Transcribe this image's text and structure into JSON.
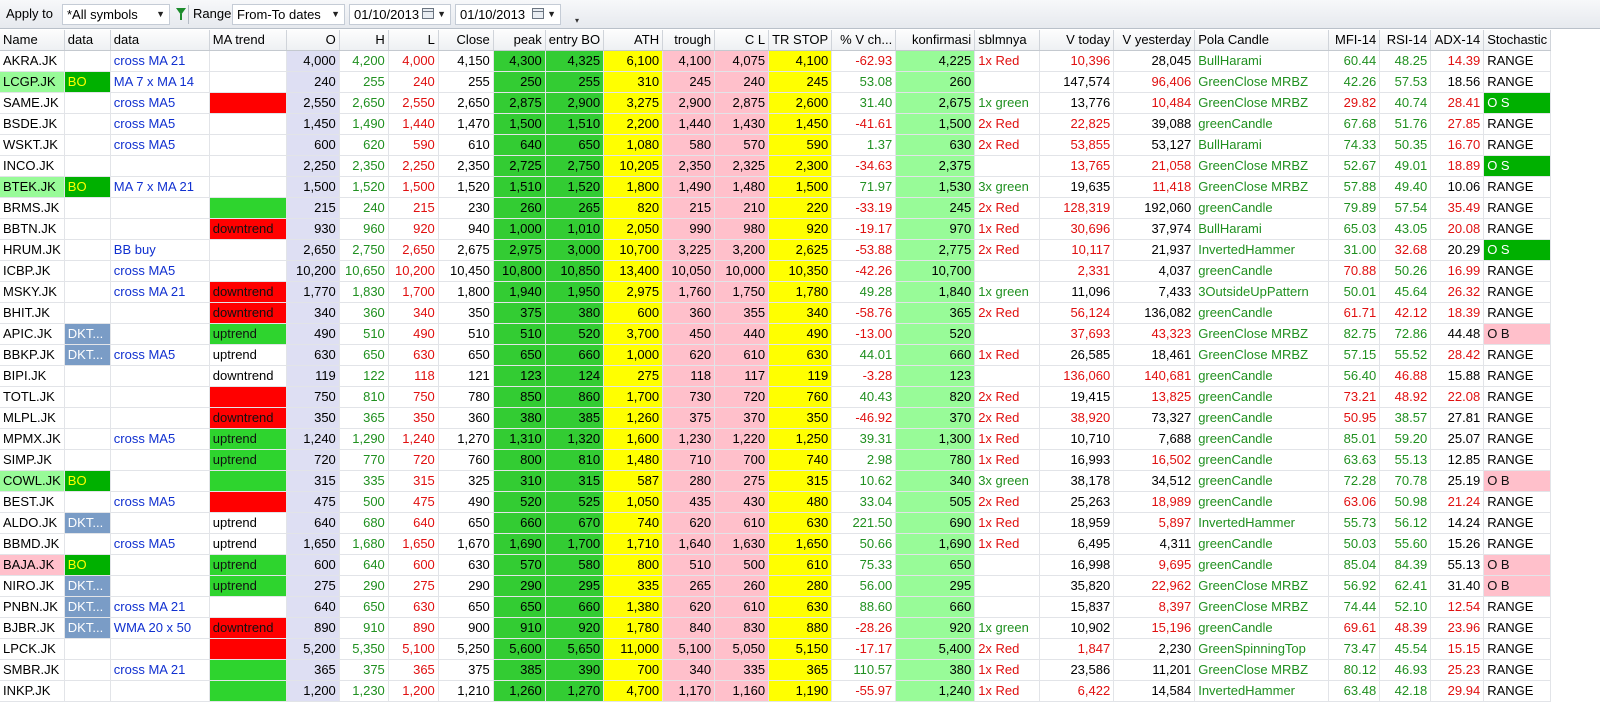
{
  "toolbar": {
    "apply_label": "Apply to",
    "symbols_value": "*All symbols",
    "range_label": "Range",
    "range_value": "From-To dates",
    "date_from": "01/10/2013",
    "date_to": "01/10/2013"
  },
  "columns": [
    "Name",
    "data",
    "data",
    "MA trend",
    "O",
    "H",
    "L",
    "Close",
    "peak",
    "entry BO",
    "ATH",
    "trough",
    "C L",
    "TR STOP",
    "% V ch...",
    "konfirmasi",
    "sblmnya",
    "V today",
    "V yesterday",
    "Pola Candle",
    "MFI-14",
    "RSI-14",
    "ADX-14",
    "Stochastic"
  ],
  "colors": {
    "red": "#ff0000",
    "green": "#2ed42e",
    "yellow": "#ffff00",
    "pink": "#ffc0cb",
    "light_green": "#98fb98",
    "bo_green": "#00b000",
    "dkt_blue": "#7a9cc6"
  },
  "rows": [
    {
      "name": "AKRA.JK",
      "d1": "",
      "d2": "cross MA 21",
      "ma": "",
      "o": "4,000",
      "h": "4,200",
      "l": "4,000",
      "close": "4,150",
      "peak": "4,300",
      "entry": "4,325",
      "ath": "6,100",
      "trough": "4,100",
      "cl": "4,075",
      "trstop": "4,100",
      "vch": "-62.93",
      "konf": "4,225",
      "sblm": "1x Red",
      "vtoday": "10,396",
      "vyest": "28,045",
      "pola": "BullHarami",
      "mfi": "60.44",
      "rsi": "48.25",
      "adx": "14.39",
      "stoch": "RANGE"
    },
    {
      "name": "LCGP.JK",
      "d1": "BO",
      "d2": "MA 7 x MA 14",
      "ma": "",
      "o": "240",
      "h": "255",
      "l": "240",
      "close": "255",
      "peak": "250",
      "entry": "255",
      "ath": "310",
      "trough": "245",
      "cl": "240",
      "trstop": "245",
      "vch": "53.08",
      "konf": "260",
      "sblm": "",
      "vtoday": "147,574",
      "vyest": "96,406",
      "pola": "GreenClose MRBZ",
      "mfi": "42.26",
      "rsi": "57.53",
      "adx": "18.56",
      "stoch": "RANGE"
    },
    {
      "name": "SAME.JK",
      "d1": "",
      "d2": "cross MA5",
      "ma": "",
      "o": "2,550",
      "h": "2,650",
      "l": "2,550",
      "close": "2,650",
      "peak": "2,875",
      "entry": "2,900",
      "ath": "3,275",
      "trough": "2,900",
      "cl": "2,875",
      "trstop": "2,600",
      "vch": "31.40",
      "konf": "2,675",
      "sblm": "1x green",
      "vtoday": "13,776",
      "vyest": "10,484",
      "pola": "GreenClose MRBZ",
      "mfi": "29.82",
      "rsi": "40.74",
      "adx": "28.41",
      "stoch": "O S"
    },
    {
      "name": "BSDE.JK",
      "d1": "",
      "d2": "cross MA5",
      "ma": "",
      "o": "1,450",
      "h": "1,490",
      "l": "1,440",
      "close": "1,470",
      "peak": "1,500",
      "entry": "1,510",
      "ath": "2,200",
      "trough": "1,440",
      "cl": "1,430",
      "trstop": "1,450",
      "vch": "-41.61",
      "konf": "1,500",
      "sblm": "2x Red",
      "vtoday": "22,825",
      "vyest": "39,088",
      "pola": "greenCandle",
      "mfi": "67.68",
      "rsi": "51.76",
      "adx": "27.85",
      "stoch": "RANGE"
    },
    {
      "name": "WSKT.JK",
      "d1": "",
      "d2": "cross MA5",
      "ma": "",
      "o": "600",
      "h": "620",
      "l": "590",
      "close": "610",
      "peak": "640",
      "entry": "650",
      "ath": "1,080",
      "trough": "580",
      "cl": "570",
      "trstop": "590",
      "vch": "1.37",
      "konf": "630",
      "sblm": "2x Red",
      "vtoday": "53,855",
      "vyest": "53,127",
      "pola": "BullHarami",
      "mfi": "74.33",
      "rsi": "50.35",
      "adx": "16.70",
      "stoch": "RANGE"
    },
    {
      "name": "INCO.JK",
      "d1": "",
      "d2": "",
      "ma": "",
      "o": "2,250",
      "h": "2,350",
      "l": "2,250",
      "close": "2,350",
      "peak": "2,725",
      "entry": "2,750",
      "ath": "10,205",
      "trough": "2,350",
      "cl": "2,325",
      "trstop": "2,300",
      "vch": "-34.63",
      "konf": "2,375",
      "sblm": "",
      "vtoday": "13,765",
      "vyest": "21,058",
      "pola": "GreenClose MRBZ",
      "mfi": "52.67",
      "rsi": "49.01",
      "adx": "18.89",
      "stoch": "O S"
    },
    {
      "name": "BTEK.JK",
      "d1": "BO",
      "d2": "MA 7 x MA 21",
      "ma": "",
      "o": "1,500",
      "h": "1,520",
      "l": "1,500",
      "close": "1,520",
      "peak": "1,510",
      "entry": "1,520",
      "ath": "1,800",
      "trough": "1,490",
      "cl": "1,480",
      "trstop": "1,500",
      "vch": "71.97",
      "konf": "1,530",
      "sblm": "3x green",
      "vtoday": "19,635",
      "vyest": "11,418",
      "pola": "GreenClose MRBZ",
      "mfi": "57.88",
      "rsi": "49.40",
      "adx": "10.06",
      "stoch": "RANGE"
    },
    {
      "name": "BRMS.JK",
      "d1": "",
      "d2": "",
      "ma": "",
      "o": "215",
      "h": "240",
      "l": "215",
      "close": "230",
      "peak": "260",
      "entry": "265",
      "ath": "820",
      "trough": "215",
      "cl": "210",
      "trstop": "220",
      "vch": "-33.19",
      "konf": "245",
      "sblm": "2x Red",
      "vtoday": "128,319",
      "vyest": "192,060",
      "pola": "greenCandle",
      "mfi": "79.89",
      "rsi": "57.54",
      "adx": "35.49",
      "stoch": "RANGE"
    },
    {
      "name": "BBTN.JK",
      "d1": "",
      "d2": "",
      "ma": "downtrend",
      "o": "930",
      "h": "960",
      "l": "920",
      "close": "940",
      "peak": "1,000",
      "entry": "1,010",
      "ath": "2,050",
      "trough": "990",
      "cl": "980",
      "trstop": "920",
      "vch": "-19.17",
      "konf": "970",
      "sblm": "1x Red",
      "vtoday": "30,696",
      "vyest": "37,974",
      "pola": "BullHarami",
      "mfi": "65.03",
      "rsi": "43.05",
      "adx": "20.08",
      "stoch": "RANGE"
    },
    {
      "name": "HRUM.JK",
      "d1": "",
      "d2": "BB buy",
      "ma": "",
      "o": "2,650",
      "h": "2,750",
      "l": "2,650",
      "close": "2,675",
      "peak": "2,975",
      "entry": "3,000",
      "ath": "10,700",
      "trough": "3,225",
      "cl": "3,200",
      "trstop": "2,625",
      "vch": "-53.88",
      "konf": "2,775",
      "sblm": "2x Red",
      "vtoday": "10,117",
      "vyest": "21,937",
      "pola": "InvertedHammer",
      "mfi": "31.00",
      "rsi": "32.68",
      "adx": "20.29",
      "stoch": "O S"
    },
    {
      "name": "ICBP.JK",
      "d1": "",
      "d2": "cross MA5",
      "ma": "",
      "o": "10,200",
      "h": "10,650",
      "l": "10,200",
      "close": "10,450",
      "peak": "10,800",
      "entry": "10,850",
      "ath": "13,400",
      "trough": "10,050",
      "cl": "10,000",
      "trstop": "10,350",
      "vch": "-42.26",
      "konf": "10,700",
      "sblm": "",
      "vtoday": "2,331",
      "vyest": "4,037",
      "pola": "greenCandle",
      "mfi": "70.88",
      "rsi": "50.26",
      "adx": "16.99",
      "stoch": "RANGE"
    },
    {
      "name": "MSKY.JK",
      "d1": "",
      "d2": "cross MA 21",
      "ma": "downtrend",
      "o": "1,770",
      "h": "1,830",
      "l": "1,700",
      "close": "1,800",
      "peak": "1,940",
      "entry": "1,950",
      "ath": "2,975",
      "trough": "1,760",
      "cl": "1,750",
      "trstop": "1,780",
      "vch": "49.28",
      "konf": "1,840",
      "sblm": "1x green",
      "vtoday": "11,096",
      "vyest": "7,433",
      "pola": "3OutsideUpPattern",
      "mfi": "50.01",
      "rsi": "45.64",
      "adx": "26.32",
      "stoch": "RANGE"
    },
    {
      "name": "BHIT.JK",
      "d1": "",
      "d2": "",
      "ma": "downtrend",
      "o": "340",
      "h": "360",
      "l": "340",
      "close": "350",
      "peak": "375",
      "entry": "380",
      "ath": "600",
      "trough": "360",
      "cl": "355",
      "trstop": "340",
      "vch": "-58.76",
      "konf": "365",
      "sblm": "2x Red",
      "vtoday": "56,124",
      "vyest": "136,082",
      "pola": "greenCandle",
      "mfi": "61.71",
      "rsi": "42.12",
      "adx": "18.39",
      "stoch": "RANGE"
    },
    {
      "name": "APIC.JK",
      "d1": "DKT...",
      "d2": "",
      "ma": "uptrend",
      "o": "490",
      "h": "510",
      "l": "490",
      "close": "510",
      "peak": "510",
      "entry": "520",
      "ath": "3,700",
      "trough": "450",
      "cl": "440",
      "trstop": "490",
      "vch": "-13.00",
      "konf": "520",
      "sblm": "",
      "vtoday": "37,693",
      "vyest": "43,323",
      "pola": "GreenClose MRBZ",
      "mfi": "82.75",
      "rsi": "72.86",
      "adx": "44.48",
      "stoch": "O B"
    },
    {
      "name": "BBKP.JK",
      "d1": "DKT...",
      "d2": "cross MA5",
      "ma": "uptrend",
      "o": "630",
      "h": "650",
      "l": "630",
      "close": "650",
      "peak": "650",
      "entry": "660",
      "ath": "1,000",
      "trough": "620",
      "cl": "610",
      "trstop": "630",
      "vch": "44.01",
      "konf": "660",
      "sblm": "1x Red",
      "vtoday": "26,585",
      "vyest": "18,461",
      "pola": "GreenClose MRBZ",
      "mfi": "57.15",
      "rsi": "55.52",
      "adx": "28.42",
      "stoch": "RANGE"
    },
    {
      "name": "BIPI.JK",
      "d1": "",
      "d2": "",
      "ma": "downtrend",
      "o": "119",
      "h": "122",
      "l": "118",
      "close": "121",
      "peak": "123",
      "entry": "124",
      "ath": "275",
      "trough": "118",
      "cl": "117",
      "trstop": "119",
      "vch": "-3.28",
      "konf": "123",
      "sblm": "",
      "vtoday": "136,060",
      "vyest": "140,681",
      "pola": "greenCandle",
      "mfi": "56.40",
      "rsi": "46.88",
      "adx": "15.88",
      "stoch": "RANGE"
    },
    {
      "name": "TOTL.JK",
      "d1": "",
      "d2": "",
      "ma": "",
      "o": "750",
      "h": "810",
      "l": "750",
      "close": "780",
      "peak": "850",
      "entry": "860",
      "ath": "1,700",
      "trough": "730",
      "cl": "720",
      "trstop": "760",
      "vch": "40.43",
      "konf": "820",
      "sblm": "2x Red",
      "vtoday": "19,415",
      "vyest": "13,825",
      "pola": "greenCandle",
      "mfi": "73.21",
      "rsi": "48.92",
      "adx": "22.08",
      "stoch": "RANGE"
    },
    {
      "name": "MLPL.JK",
      "d1": "",
      "d2": "",
      "ma": "downtrend",
      "o": "350",
      "h": "365",
      "l": "350",
      "close": "360",
      "peak": "380",
      "entry": "385",
      "ath": "1,260",
      "trough": "375",
      "cl": "370",
      "trstop": "350",
      "vch": "-46.92",
      "konf": "370",
      "sblm": "2x Red",
      "vtoday": "38,920",
      "vyest": "73,327",
      "pola": "greenCandle",
      "mfi": "50.95",
      "rsi": "38.57",
      "adx": "27.81",
      "stoch": "RANGE"
    },
    {
      "name": "MPMX.JK",
      "d1": "",
      "d2": "cross MA5",
      "ma": "uptrend",
      "o": "1,240",
      "h": "1,290",
      "l": "1,240",
      "close": "1,270",
      "peak": "1,310",
      "entry": "1,320",
      "ath": "1,600",
      "trough": "1,230",
      "cl": "1,220",
      "trstop": "1,250",
      "vch": "39.31",
      "konf": "1,300",
      "sblm": "1x Red",
      "vtoday": "10,710",
      "vyest": "7,688",
      "pola": "greenCandle",
      "mfi": "85.01",
      "rsi": "59.20",
      "adx": "25.07",
      "stoch": "RANGE"
    },
    {
      "name": "SIMP.JK",
      "d1": "",
      "d2": "",
      "ma": "uptrend",
      "o": "720",
      "h": "770",
      "l": "720",
      "close": "760",
      "peak": "800",
      "entry": "810",
      "ath": "1,480",
      "trough": "710",
      "cl": "700",
      "trstop": "740",
      "vch": "2.98",
      "konf": "780",
      "sblm": "1x Red",
      "vtoday": "16,993",
      "vyest": "16,502",
      "pola": "greenCandle",
      "mfi": "63.63",
      "rsi": "55.13",
      "adx": "12.85",
      "stoch": "RANGE"
    },
    {
      "name": "COWL.JK",
      "d1": "BO",
      "d2": "",
      "ma": "",
      "o": "315",
      "h": "335",
      "l": "315",
      "close": "325",
      "peak": "310",
      "entry": "315",
      "ath": "587",
      "trough": "280",
      "cl": "275",
      "trstop": "315",
      "vch": "10.62",
      "konf": "340",
      "sblm": "3x green",
      "vtoday": "38,178",
      "vyest": "34,512",
      "pola": "greenCandle",
      "mfi": "72.28",
      "rsi": "70.78",
      "adx": "25.19",
      "stoch": "O B"
    },
    {
      "name": "BEST.JK",
      "d1": "",
      "d2": "cross MA5",
      "ma": "",
      "o": "475",
      "h": "500",
      "l": "475",
      "close": "490",
      "peak": "520",
      "entry": "525",
      "ath": "1,050",
      "trough": "435",
      "cl": "430",
      "trstop": "480",
      "vch": "33.04",
      "konf": "505",
      "sblm": "2x Red",
      "vtoday": "25,263",
      "vyest": "18,989",
      "pola": "greenCandle",
      "mfi": "63.06",
      "rsi": "50.98",
      "adx": "21.24",
      "stoch": "RANGE"
    },
    {
      "name": "ALDO.JK",
      "d1": "DKT...",
      "d2": "",
      "ma": "uptrend",
      "o": "640",
      "h": "680",
      "l": "640",
      "close": "650",
      "peak": "660",
      "entry": "670",
      "ath": "740",
      "trough": "620",
      "cl": "610",
      "trstop": "630",
      "vch": "221.50",
      "konf": "690",
      "sblm": "1x Red",
      "vtoday": "18,959",
      "vyest": "5,897",
      "pola": "InvertedHammer",
      "mfi": "55.73",
      "rsi": "56.12",
      "adx": "14.24",
      "stoch": "RANGE"
    },
    {
      "name": "BBMD.JK",
      "d1": "",
      "d2": "cross MA5",
      "ma": "uptrend",
      "o": "1,650",
      "h": "1,680",
      "l": "1,650",
      "close": "1,670",
      "peak": "1,690",
      "entry": "1,700",
      "ath": "1,710",
      "trough": "1,640",
      "cl": "1,630",
      "trstop": "1,650",
      "vch": "50.66",
      "konf": "1,690",
      "sblm": "1x Red",
      "vtoday": "6,495",
      "vyest": "4,311",
      "pola": "greenCandle",
      "mfi": "50.03",
      "rsi": "55.60",
      "adx": "15.26",
      "stoch": "RANGE"
    },
    {
      "name": "BAJA.JK",
      "d1": "BO",
      "d2": "",
      "ma": "uptrend",
      "o": "600",
      "h": "640",
      "l": "600",
      "close": "630",
      "peak": "570",
      "entry": "580",
      "ath": "800",
      "trough": "510",
      "cl": "500",
      "trstop": "610",
      "vch": "75.33",
      "konf": "650",
      "sblm": "",
      "vtoday": "16,998",
      "vyest": "9,695",
      "pola": "greenCandle",
      "mfi": "85.04",
      "rsi": "84.39",
      "adx": "55.13",
      "stoch": "O B"
    },
    {
      "name": "NIRO.JK",
      "d1": "DKT...",
      "d2": "",
      "ma": "uptrend",
      "o": "275",
      "h": "290",
      "l": "275",
      "close": "290",
      "peak": "290",
      "entry": "295",
      "ath": "335",
      "trough": "265",
      "cl": "260",
      "trstop": "280",
      "vch": "56.00",
      "konf": "295",
      "sblm": "",
      "vtoday": "35,820",
      "vyest": "22,962",
      "pola": "GreenClose MRBZ",
      "mfi": "56.92",
      "rsi": "62.41",
      "adx": "31.40",
      "stoch": "O B"
    },
    {
      "name": "PNBN.JK",
      "d1": "DKT...",
      "d2": "cross MA 21",
      "ma": "",
      "o": "640",
      "h": "650",
      "l": "630",
      "close": "650",
      "peak": "650",
      "entry": "660",
      "ath": "1,380",
      "trough": "620",
      "cl": "610",
      "trstop": "630",
      "vch": "88.60",
      "konf": "660",
      "sblm": "",
      "vtoday": "15,837",
      "vyest": "8,397",
      "pola": "GreenClose MRBZ",
      "mfi": "74.44",
      "rsi": "52.10",
      "adx": "12.54",
      "stoch": "RANGE"
    },
    {
      "name": "BJBR.JK",
      "d1": "DKT...",
      "d2": "WMA 20 x 50",
      "ma": "downtrend",
      "o": "890",
      "h": "910",
      "l": "890",
      "close": "900",
      "peak": "910",
      "entry": "920",
      "ath": "1,780",
      "trough": "840",
      "cl": "830",
      "trstop": "880",
      "vch": "-28.26",
      "konf": "920",
      "sblm": "1x green",
      "vtoday": "10,902",
      "vyest": "15,196",
      "pola": "greenCandle",
      "mfi": "69.61",
      "rsi": "48.39",
      "adx": "23.96",
      "stoch": "RANGE"
    },
    {
      "name": "LPCK.JK",
      "d1": "",
      "d2": "",
      "ma": "",
      "o": "5,200",
      "h": "5,350",
      "l": "5,100",
      "close": "5,250",
      "peak": "5,600",
      "entry": "5,650",
      "ath": "11,000",
      "trough": "5,100",
      "cl": "5,050",
      "trstop": "5,150",
      "vch": "-17.17",
      "konf": "5,400",
      "sblm": "2x Red",
      "vtoday": "1,847",
      "vyest": "2,230",
      "pola": "GreenSpinningTop",
      "mfi": "73.47",
      "rsi": "45.54",
      "adx": "15.15",
      "stoch": "RANGE"
    },
    {
      "name": "SMBR.JK",
      "d1": "",
      "d2": "cross MA 21",
      "ma": "",
      "o": "365",
      "h": "375",
      "l": "365",
      "close": "375",
      "peak": "385",
      "entry": "390",
      "ath": "700",
      "trough": "340",
      "cl": "335",
      "trstop": "365",
      "vch": "110.57",
      "konf": "380",
      "sblm": "1x Red",
      "vtoday": "23,586",
      "vyest": "11,201",
      "pola": "GreenClose MRBZ",
      "mfi": "80.12",
      "rsi": "46.93",
      "adx": "25.23",
      "stoch": "RANGE"
    },
    {
      "name": "INKP.JK",
      "d1": "",
      "d2": "",
      "ma": "",
      "o": "1,200",
      "h": "1,230",
      "l": "1,200",
      "close": "1,210",
      "peak": "1,260",
      "entry": "1,270",
      "ath": "4,700",
      "trough": "1,170",
      "cl": "1,160",
      "trstop": "1,190",
      "vch": "-55.97",
      "konf": "1,240",
      "sblm": "1x Red",
      "vtoday": "6,422",
      "vyest": "14,584",
      "pola": "InvertedHammer",
      "mfi": "63.48",
      "rsi": "42.18",
      "adx": "29.94",
      "stoch": "RANGE"
    }
  ]
}
